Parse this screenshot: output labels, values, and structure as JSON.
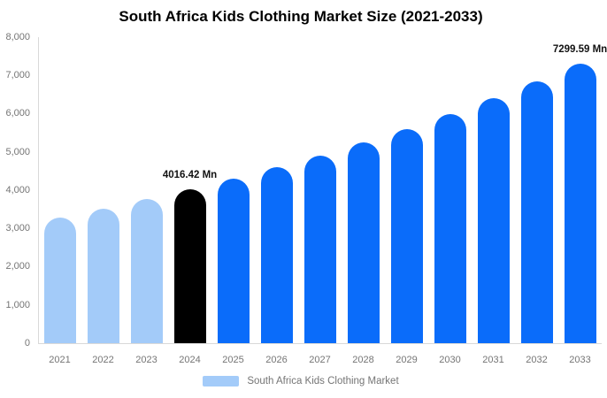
{
  "title": "South Africa Kids Clothing Market Size (2021-2033)",
  "legend": {
    "label": "South Africa Kids Clothing Market",
    "swatch_color": "#a3cbf9"
  },
  "colors": {
    "light_blue": "#a3cbf9",
    "accent_blue": "#0a6cfa",
    "highlight_black": "#000000",
    "axis_line": "#d9d9d9",
    "tick_text": "#757575",
    "title_text": "#000000",
    "data_label_text": "#111111"
  },
  "chart_data": {
    "type": "bar",
    "title": "South Africa Kids Clothing Market Size (2021-2033)",
    "categories": [
      "2021",
      "2022",
      "2023",
      "2024",
      "2025",
      "2026",
      "2027",
      "2028",
      "2029",
      "2030",
      "2031",
      "2032",
      "2033"
    ],
    "values": [
      3290,
      3516,
      3758,
      4016.42,
      4292,
      4587,
      4902,
      5239,
      5598,
      5983,
      6394,
      6833,
      7299.59
    ],
    "unit": "Mn",
    "bar_colors": [
      "#a3cbf9",
      "#a3cbf9",
      "#a3cbf9",
      "#000000",
      "#0a6cfa",
      "#0a6cfa",
      "#0a6cfa",
      "#0a6cfa",
      "#0a6cfa",
      "#0a6cfa",
      "#0a6cfa",
      "#0a6cfa",
      "#0a6cfa"
    ],
    "data_labels": [
      {
        "category": "2024",
        "text": "4016.42 Mn"
      },
      {
        "category": "2033",
        "text": "7299.59 Mn"
      }
    ],
    "xlabel": "",
    "ylabel": "",
    "ylim": [
      0,
      8000
    ],
    "ytick_step": 1000,
    "ytick_labels": [
      "0",
      "1,000",
      "2,000",
      "3,000",
      "4,000",
      "5,000",
      "6,000",
      "7,000",
      "8,000"
    ],
    "grid": false,
    "legend_position": "bottom",
    "legend_entries": [
      "South Africa Kids Clothing Market"
    ]
  }
}
